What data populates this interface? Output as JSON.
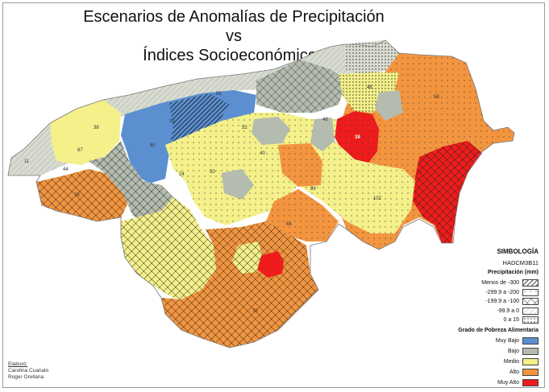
{
  "title_line1": "Escenarios de Anomalías de Precipitación vs",
  "title_line2": "Índices Socioeconómicos",
  "legend": {
    "title": "SIMBOLOGÍA",
    "model": "HADCM3B11",
    "precip_title": "Precipitación (mm)",
    "precip_classes": [
      {
        "label": "Menos de -300",
        "pattern": "dense-hatch"
      },
      {
        "label": "-299.9 a -200",
        "pattern": "sparse-dots"
      },
      {
        "label": "-199.9 a -100",
        "pattern": "crosshatch"
      },
      {
        "label": "-99.9 a 0",
        "pattern": "light-hatch"
      },
      {
        "label": "0 a 15",
        "pattern": "dense-dots"
      }
    ],
    "poverty_title": "Grado de Pobreza Alimentaria",
    "poverty_classes": [
      {
        "label": "Muy Bajo",
        "color": "#5b8fd0"
      },
      {
        "label": "Bajo",
        "color": "#b3bcae"
      },
      {
        "label": "Medio",
        "color": "#f4f08a"
      },
      {
        "label": "Alto",
        "color": "#f3953f"
      },
      {
        "label": "Muy Alto",
        "color": "#ee1c1c"
      }
    ]
  },
  "credits": {
    "label": "Elaboró:",
    "author1": "Carolina Cuanalo",
    "author2": "Roger Orellana"
  },
  "map_labels": [
    "38",
    "67",
    "11",
    "44",
    "60",
    "32",
    "65",
    "52",
    "50",
    "40",
    "64",
    "89",
    "102",
    "78",
    "58",
    "24",
    "46",
    "76",
    "48",
    "39"
  ]
}
